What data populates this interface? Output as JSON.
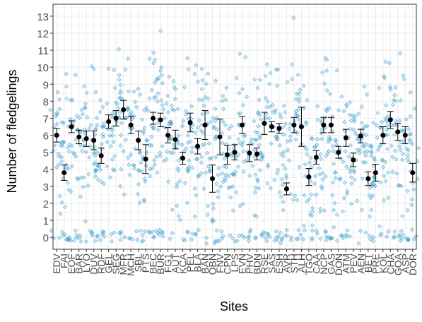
{
  "chart_data": {
    "type": "scatter",
    "xlabel": "Sites",
    "ylabel": "Number of fledgelings",
    "ylim": [
      -0.7,
      13.7
    ],
    "y_ticks": [
      0,
      1,
      2,
      3,
      4,
      5,
      6,
      7,
      8,
      9,
      10,
      11,
      12,
      13
    ],
    "grid": true,
    "legend": "none",
    "colors": {
      "raw_points": "#1f8fc9",
      "mean_points": "#000000",
      "grid": "#ebebeb",
      "axis": "#333333"
    },
    "categories": [
      "EDV",
      "FAI",
      "EOF",
      "BAR",
      "LYO",
      "DUV",
      "RDF",
      "GEL",
      "SEG",
      "MFR",
      "MCH",
      "SBL",
      "PTS",
      "BEC",
      "BUR",
      "FG1",
      "AUT",
      "KCA",
      "PEL",
      "BLA",
      "BAN",
      "OBN",
      "FNV",
      "CPN",
      "LPS",
      "EVN",
      "PHV",
      "BDN",
      "RSE",
      "SAS",
      "ESH",
      "AVR",
      "STH",
      "ALH",
      "TGO",
      "CAA",
      "NCP",
      "GAS",
      "DON",
      "ATM",
      "PEV",
      "AEN",
      "BET",
      "PRE",
      "KOL",
      "CHA",
      "GOA",
      "ASP",
      "DOR"
    ],
    "means": [
      6.0,
      3.8,
      6.5,
      5.9,
      5.8,
      5.7,
      4.8,
      6.8,
      7.0,
      7.5,
      6.6,
      5.7,
      4.6,
      7.0,
      6.9,
      6.0,
      5.75,
      4.65,
      6.75,
      5.35,
      6.6,
      3.45,
      5.9,
      4.85,
      5.0,
      6.6,
      4.95,
      4.9,
      6.7,
      6.5,
      6.4,
      2.85,
      6.6,
      6.5,
      3.55,
      4.7,
      6.6,
      6.6,
      5.0,
      5.85,
      4.55,
      5.95,
      3.45,
      3.8,
      6.0,
      6.9,
      6.2,
      6.0,
      3.8
    ],
    "errors": [
      0.4,
      0.45,
      0.35,
      0.4,
      0.45,
      0.55,
      0.45,
      0.4,
      0.45,
      0.55,
      0.5,
      0.55,
      0.85,
      0.35,
      0.4,
      0.45,
      0.55,
      0.35,
      0.55,
      0.45,
      0.85,
      0.8,
      1.05,
      0.55,
      0.45,
      0.5,
      0.5,
      0.35,
      0.65,
      0.3,
      0.3,
      0.35,
      0.45,
      1.15,
      0.5,
      0.4,
      0.45,
      0.45,
      0.35,
      0.5,
      0.4,
      0.4,
      0.4,
      0.5,
      0.5,
      0.5,
      0.5,
      0.5,
      0.55
    ],
    "raw_point_count": 1100
  }
}
